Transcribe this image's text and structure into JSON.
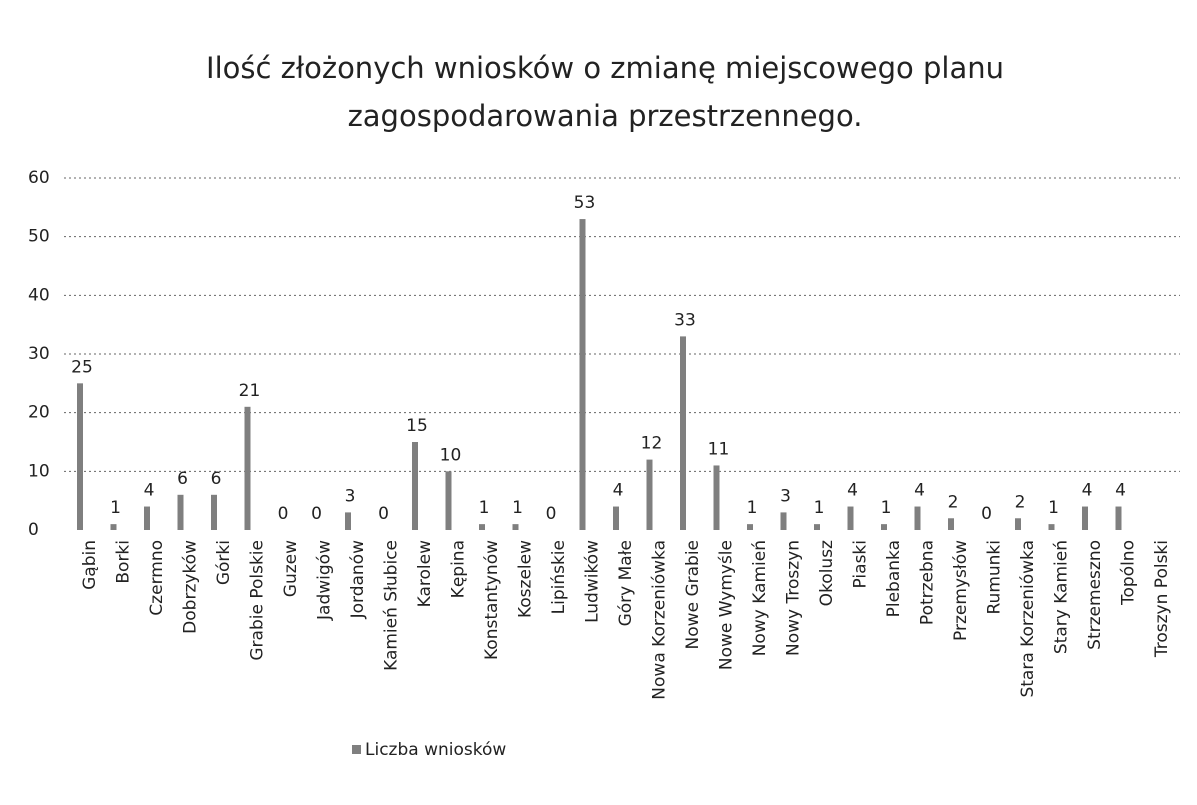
{
  "chart_data": {
    "type": "bar",
    "title": "Ilość złożonych  wniosków o zmianę miejscowego planu zagospodarowania przestrzennego.",
    "categories": [
      "Gąbin",
      "Borki",
      "Czermno",
      "Dobrzyków",
      "Górki",
      "Grabie Polskie",
      "Guzew",
      "Jadwigów",
      "Jordanów",
      "Kamień Słubice",
      "Karolew",
      "Kępina",
      "Konstantynów",
      "Koszelew",
      "Lipińskie",
      "Ludwików",
      "Góry Małe",
      "Nowa Korzeniówka",
      "Nowe Grabie",
      "Nowe Wymyśle",
      "Nowy Kamień",
      "Nowy Troszyn",
      "Okolusz",
      "Piaski",
      "Plebanka",
      "Potrzebna",
      "Przemysłów",
      "Rumunki",
      "Stara Korzeniówka",
      "Stary Kamień",
      "Strzemeszno",
      "Topólno",
      "Troszyn Polski"
    ],
    "series": [
      {
        "name": "Liczba wniosków",
        "color": "#7f7f7f",
        "values": [
          25,
          1,
          4,
          6,
          6,
          21,
          0,
          0,
          3,
          0,
          15,
          10,
          1,
          1,
          0,
          53,
          4,
          12,
          33,
          11,
          1,
          3,
          1,
          4,
          1,
          4,
          2,
          0,
          2,
          1,
          4,
          4,
          null
        ]
      }
    ],
    "ylim": [
      0,
      60
    ],
    "yticks": [
      0,
      10,
      20,
      30,
      40,
      50,
      60
    ],
    "grid": true,
    "legend": "bottom"
  }
}
